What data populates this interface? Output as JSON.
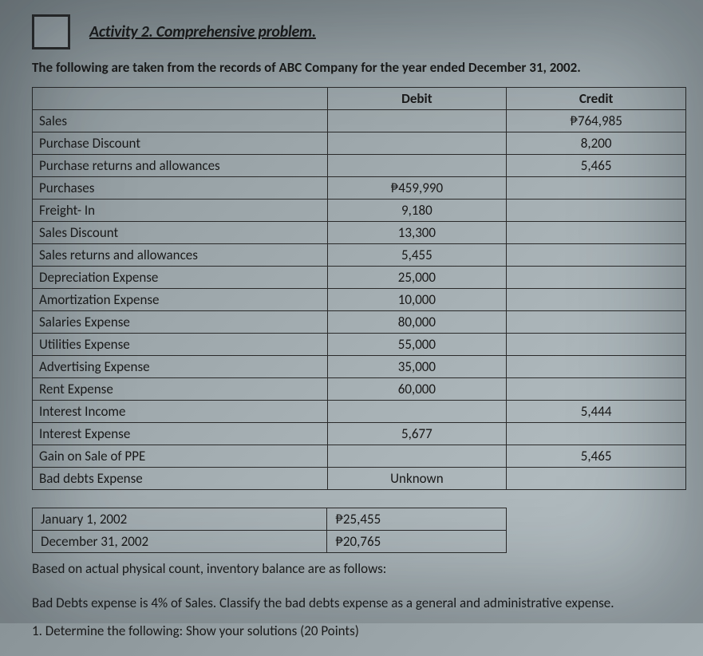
{
  "title": "Activity 2. Comprehensive problem.",
  "intro": "The following are taken from the records of ABC Company for the year ended December 31, 2002.",
  "columns": {
    "debit": "Debit",
    "credit": "Credit"
  },
  "rows": [
    {
      "label": "Sales",
      "debit": "",
      "credit": "₱764,985"
    },
    {
      "label": "Purchase Discount",
      "debit": "",
      "credit": "8,200"
    },
    {
      "label": "Purchase returns and allowances",
      "debit": "",
      "credit": "5,465"
    },
    {
      "label": "Purchases",
      "debit": "₱459,990",
      "credit": ""
    },
    {
      "label": "Freight- In",
      "debit": "9,180",
      "credit": ""
    },
    {
      "label": "Sales Discount",
      "debit": "13,300",
      "credit": ""
    },
    {
      "label": "Sales returns and allowances",
      "debit": "5,455",
      "credit": ""
    },
    {
      "label": "Depreciation Expense",
      "debit": "25,000",
      "credit": ""
    },
    {
      "label": "Amortization Expense",
      "debit": "10,000",
      "credit": ""
    },
    {
      "label": "Salaries Expense",
      "debit": "80,000",
      "credit": ""
    },
    {
      "label": "Utilities Expense",
      "debit": "55,000",
      "credit": ""
    },
    {
      "label": "Advertising Expense",
      "debit": "35,000",
      "credit": ""
    },
    {
      "label": "Rent Expense",
      "debit": "60,000",
      "credit": ""
    },
    {
      "label": "Interest Income",
      "debit": "",
      "credit": "5,444"
    },
    {
      "label": "Interest Expense",
      "debit": "5,677",
      "credit": ""
    },
    {
      "label": "Gain on Sale of PPE",
      "debit": "",
      "credit": "5,465"
    },
    {
      "label": "Bad debts Expense",
      "debit": "Unknown",
      "credit": ""
    }
  ],
  "inventory": [
    {
      "label": "January 1, 2002",
      "value": "₱25,455"
    },
    {
      "label": "December 31, 2002",
      "value": "₱20,765"
    }
  ],
  "note_inventory": "Based on actual physical count, inventory balance are as follows:",
  "note_baddebts": "Bad Debts expense is 4% of Sales. Classify the bad debts expense as a general and administrative expense.",
  "task": "1. Determine the following: Show your solutions (20 Points)"
}
